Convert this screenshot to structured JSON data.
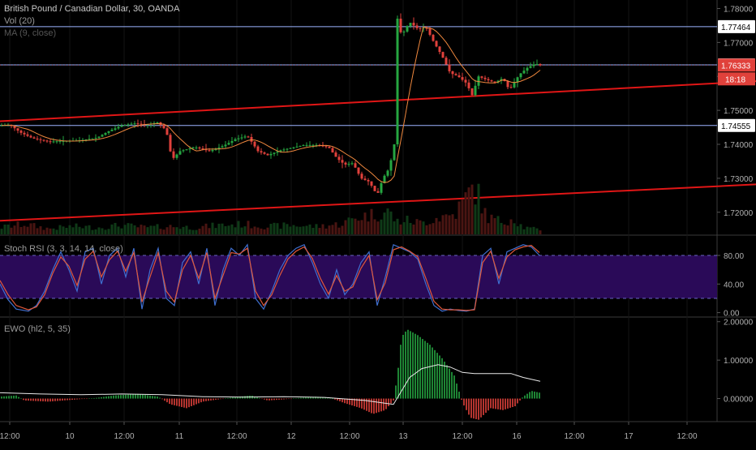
{
  "header": {
    "symbol_title": "British Pound / Canadian Dollar, 30, OANDA",
    "vol_label": "Vol (20)",
    "ma_label": "MA (9, close)",
    "stoch_label": "Stoch RSI (3, 3, 14, 14, close)",
    "ewo_label": "EWO (hl2, 5, 35)"
  },
  "colors": {
    "background": "#000000",
    "up": "#26a641",
    "down": "#e0413b",
    "trendline": "#e01616",
    "level_line": "#9db4ff",
    "ma_line": "#f0883e",
    "stoch_k": "#3f6fd0",
    "stoch_d": "#e0583b",
    "stoch_band": "#2a0a58",
    "ewo_signal": "#e8e8e8",
    "price_badge_bg": "#e0413b",
    "level_badge_bg": "#ffffff"
  },
  "chart_data": [
    {
      "type": "candlestick",
      "pane": "price",
      "ylim": [
        1.7135,
        1.7825
      ],
      "y_ticks": [
        "1.78000",
        "1.77000",
        "1.76000",
        "1.75000",
        "1.74000",
        "1.73000",
        "1.72000"
      ],
      "y_tick_values": [
        1.78,
        1.77,
        1.76,
        1.75,
        1.74,
        1.73,
        1.72
      ],
      "horizontal_levels": [
        {
          "label": "1.77464",
          "value": 1.77464
        },
        {
          "label": "1.76341",
          "value": 1.76341
        },
        {
          "label": "1.74555",
          "value": 1.74555
        }
      ],
      "last_price": {
        "label": "1.76333",
        "value": 1.76333
      },
      "countdown": "18:18",
      "trendlines": [
        {
          "from": [
            0,
            1.7468
          ],
          "to": [
            932,
            1.7586
          ]
        },
        {
          "from": [
            0,
            1.7175
          ],
          "to": [
            932,
            1.7282
          ]
        }
      ],
      "price_path": [
        [
          0,
          1.7455
        ],
        [
          12,
          1.7458
        ],
        [
          25,
          1.7435
        ],
        [
          40,
          1.7418
        ],
        [
          60,
          1.7408
        ],
        [
          80,
          1.741
        ],
        [
          100,
          1.7412
        ],
        [
          120,
          1.742
        ],
        [
          135,
          1.744
        ],
        [
          150,
          1.7455
        ],
        [
          165,
          1.7462
        ],
        [
          180,
          1.7458
        ],
        [
          195,
          1.7465
        ],
        [
          205,
          1.744
        ],
        [
          212,
          1.7355
        ],
        [
          222,
          1.738
        ],
        [
          240,
          1.7392
        ],
        [
          258,
          1.738
        ],
        [
          275,
          1.7395
        ],
        [
          290,
          1.7415
        ],
        [
          305,
          1.7425
        ],
        [
          318,
          1.738
        ],
        [
          330,
          1.7368
        ],
        [
          345,
          1.7382
        ],
        [
          360,
          1.739
        ],
        [
          375,
          1.7398
        ],
        [
          390,
          1.7398
        ],
        [
          405,
          1.7392
        ],
        [
          415,
          1.736
        ],
        [
          425,
          1.734
        ],
        [
          435,
          1.7345
        ],
        [
          445,
          1.73
        ],
        [
          455,
          1.729
        ],
        [
          465,
          1.725
        ],
        [
          472,
          1.73
        ],
        [
          480,
          1.733
        ],
        [
          486,
          1.74
        ],
        [
          489,
          1.778
        ],
        [
          495,
          1.772
        ],
        [
          505,
          1.776
        ],
        [
          515,
          1.774
        ],
        [
          525,
          1.7745
        ],
        [
          535,
          1.77
        ],
        [
          545,
          1.766
        ],
        [
          555,
          1.761
        ],
        [
          565,
          1.76
        ],
        [
          575,
          1.758
        ],
        [
          582,
          1.7545
        ],
        [
          590,
          1.76
        ],
        [
          600,
          1.759
        ],
        [
          610,
          1.7582
        ],
        [
          620,
          1.7595
        ],
        [
          628,
          1.756
        ],
        [
          640,
          1.7605
        ],
        [
          650,
          1.7625
        ],
        [
          660,
          1.7638
        ],
        [
          666,
          1.7633
        ]
      ],
      "volume_path": [
        [
          0,
          0.12
        ],
        [
          30,
          0.18
        ],
        [
          60,
          0.1
        ],
        [
          90,
          0.14
        ],
        [
          120,
          0.12
        ],
        [
          150,
          0.16
        ],
        [
          180,
          0.12
        ],
        [
          210,
          0.14
        ],
        [
          240,
          0.12
        ],
        [
          270,
          0.16
        ],
        [
          300,
          0.18
        ],
        [
          330,
          0.14
        ],
        [
          360,
          0.16
        ],
        [
          390,
          0.14
        ],
        [
          420,
          0.18
        ],
        [
          440,
          0.3
        ],
        [
          460,
          0.35
        ],
        [
          480,
          0.4
        ],
        [
          488,
          0.22
        ],
        [
          500,
          0.25
        ],
        [
          520,
          0.2
        ],
        [
          540,
          0.3
        ],
        [
          560,
          0.35
        ],
        [
          585,
          0.85
        ],
        [
          600,
          0.3
        ],
        [
          620,
          0.22
        ],
        [
          632,
          0.3
        ],
        [
          645,
          0.12
        ],
        [
          666,
          0.08
        ]
      ]
    },
    {
      "type": "line",
      "pane": "stoch_rsi",
      "ylim": [
        -5,
        105
      ],
      "y_ticks": [
        "80.00",
        "40.00",
        "0.00"
      ],
      "y_tick_values": [
        80,
        40,
        0
      ],
      "band": [
        20,
        80
      ],
      "series": [
        {
          "values": [
            [
              0,
              40
            ],
            [
              10,
              18
            ],
            [
              20,
              5
            ],
            [
              35,
              2
            ],
            [
              45,
              10
            ],
            [
              55,
              30
            ],
            [
              65,
              60
            ],
            [
              75,
              85
            ],
            [
              85,
              60
            ],
            [
              95,
              30
            ],
            [
              105,
              85
            ],
            [
              115,
              90
            ],
            [
              125,
              40
            ],
            [
              135,
              80
            ],
            [
              145,
              90
            ],
            [
              155,
              50
            ],
            [
              165,
              90
            ],
            [
              175,
              5
            ],
            [
              185,
              60
            ],
            [
              195,
              90
            ],
            [
              205,
              20
            ],
            [
              215,
              10
            ],
            [
              225,
              70
            ],
            [
              235,
              85
            ],
            [
              245,
              40
            ],
            [
              255,
              90
            ],
            [
              265,
              10
            ],
            [
              275,
              60
            ],
            [
              285,
              90
            ],
            [
              295,
              80
            ],
            [
              305,
              95
            ],
            [
              315,
              20
            ],
            [
              325,
              5
            ],
            [
              335,
              30
            ],
            [
              345,
              60
            ],
            [
              355,
              80
            ],
            [
              365,
              90
            ],
            [
              375,
              95
            ],
            [
              385,
              70
            ],
            [
              395,
              40
            ],
            [
              405,
              20
            ],
            [
              415,
              60
            ],
            [
              425,
              25
            ],
            [
              435,
              40
            ],
            [
              445,
              70
            ],
            [
              455,
              85
            ],
            [
              465,
              10
            ],
            [
              475,
              50
            ],
            [
              485,
              95
            ],
            [
              495,
              90
            ],
            [
              505,
              85
            ],
            [
              515,
              75
            ],
            [
              525,
              40
            ],
            [
              535,
              10
            ],
            [
              545,
              2
            ],
            [
              555,
              5
            ],
            [
              565,
              3
            ],
            [
              575,
              2
            ],
            [
              585,
              5
            ],
            [
              595,
              80
            ],
            [
              605,
              90
            ],
            [
              615,
              40
            ],
            [
              625,
              85
            ],
            [
              635,
              90
            ],
            [
              645,
              95
            ],
            [
              655,
              92
            ],
            [
              665,
              80
            ]
          ]
        },
        {
          "values": [
            [
              0,
              45
            ],
            [
              10,
              25
            ],
            [
              20,
              10
            ],
            [
              35,
              4
            ],
            [
              45,
              8
            ],
            [
              55,
              25
            ],
            [
              65,
              55
            ],
            [
              75,
              78
            ],
            [
              85,
              65
            ],
            [
              95,
              38
            ],
            [
              105,
              75
            ],
            [
              115,
              86
            ],
            [
              125,
              50
            ],
            [
              135,
              74
            ],
            [
              145,
              86
            ],
            [
              155,
              58
            ],
            [
              165,
              84
            ],
            [
              175,
              15
            ],
            [
              185,
              50
            ],
            [
              195,
              84
            ],
            [
              205,
              30
            ],
            [
              215,
              15
            ],
            [
              225,
              60
            ],
            [
              235,
              80
            ],
            [
              245,
              48
            ],
            [
              255,
              84
            ],
            [
              265,
              20
            ],
            [
              275,
              52
            ],
            [
              285,
              84
            ],
            [
              295,
              82
            ],
            [
              305,
              90
            ],
            [
              315,
              30
            ],
            [
              325,
              10
            ],
            [
              335,
              25
            ],
            [
              345,
              52
            ],
            [
              355,
              75
            ],
            [
              365,
              86
            ],
            [
              375,
              92
            ],
            [
              385,
              76
            ],
            [
              395,
              48
            ],
            [
              405,
              26
            ],
            [
              415,
              52
            ],
            [
              425,
              30
            ],
            [
              435,
              36
            ],
            [
              445,
              62
            ],
            [
              455,
              80
            ],
            [
              465,
              18
            ],
            [
              475,
              42
            ],
            [
              485,
              88
            ],
            [
              495,
              92
            ],
            [
              505,
              86
            ],
            [
              515,
              78
            ],
            [
              525,
              48
            ],
            [
              535,
              16
            ],
            [
              545,
              5
            ],
            [
              555,
              4
            ],
            [
              565,
              4
            ],
            [
              575,
              3
            ],
            [
              585,
              4
            ],
            [
              595,
              70
            ],
            [
              605,
              86
            ],
            [
              615,
              48
            ],
            [
              625,
              78
            ],
            [
              635,
              88
            ],
            [
              645,
              92
            ],
            [
              655,
              94
            ],
            [
              665,
              84
            ]
          ]
        }
      ]
    },
    {
      "type": "bar",
      "pane": "ewo",
      "ylim": [
        -0.6,
        2.1
      ],
      "y_ticks": [
        "2.00000",
        "1.00000",
        "0.00000"
      ],
      "y_tick_values": [
        2,
        1,
        0
      ],
      "histogram_path": [
        [
          0,
          0.05
        ],
        [
          20,
          0.08
        ],
        [
          30,
          -0.05
        ],
        [
          60,
          -0.08
        ],
        [
          90,
          -0.03
        ],
        [
          120,
          0.02
        ],
        [
          140,
          0.08
        ],
        [
          170,
          0.12
        ],
        [
          195,
          0.05
        ],
        [
          210,
          -0.15
        ],
        [
          230,
          -0.25
        ],
        [
          250,
          -0.08
        ],
        [
          270,
          -0.02
        ],
        [
          290,
          0.04
        ],
        [
          310,
          0.08
        ],
        [
          330,
          -0.05
        ],
        [
          350,
          -0.02
        ],
        [
          370,
          0.02
        ],
        [
          390,
          0.05
        ],
        [
          410,
          0.0
        ],
        [
          425,
          -0.12
        ],
        [
          445,
          -0.25
        ],
        [
          460,
          -0.4
        ],
        [
          475,
          -0.3
        ],
        [
          485,
          -0.05
        ],
        [
          490,
          0.6
        ],
        [
          495,
          1.6
        ],
        [
          502,
          1.8
        ],
        [
          515,
          1.65
        ],
        [
          530,
          1.4
        ],
        [
          545,
          1.05
        ],
        [
          560,
          0.6
        ],
        [
          570,
          -0.1
        ],
        [
          580,
          -0.5
        ],
        [
          590,
          -0.55
        ],
        [
          605,
          -0.25
        ],
        [
          620,
          -0.3
        ],
        [
          635,
          -0.2
        ],
        [
          645,
          0.05
        ],
        [
          655,
          0.2
        ],
        [
          666,
          0.15
        ]
      ],
      "signal_path": [
        [
          0,
          0.15
        ],
        [
          50,
          0.12
        ],
        [
          100,
          0.1
        ],
        [
          150,
          0.12
        ],
        [
          200,
          0.1
        ],
        [
          250,
          0.05
        ],
        [
          300,
          0.04
        ],
        [
          350,
          0.05
        ],
        [
          400,
          0.03
        ],
        [
          450,
          -0.05
        ],
        [
          485,
          -0.15
        ],
        [
          495,
          0.2
        ],
        [
          505,
          0.55
        ],
        [
          520,
          0.78
        ],
        [
          540,
          0.88
        ],
        [
          555,
          0.82
        ],
        [
          570,
          0.68
        ],
        [
          585,
          0.65
        ],
        [
          600,
          0.65
        ],
        [
          615,
          0.65
        ],
        [
          630,
          0.65
        ],
        [
          645,
          0.55
        ],
        [
          666,
          0.45
        ]
      ]
    }
  ],
  "x_axis": {
    "labels": [
      {
        "text": "12:00",
        "value": 12
      },
      {
        "text": "10",
        "value": 86
      },
      {
        "text": "12:00",
        "value": 153
      },
      {
        "text": "11",
        "value": 221
      },
      {
        "text": "12:00",
        "value": 292
      },
      {
        "text": "12",
        "value": 359
      },
      {
        "text": "12:00",
        "value": 431
      },
      {
        "text": "13",
        "value": 497
      },
      {
        "text": "12:00",
        "value": 570
      },
      {
        "text": "16",
        "value": 637
      },
      {
        "text": "12:00",
        "value": 708
      },
      {
        "text": "17",
        "value": 775
      },
      {
        "text": "12:00",
        "value": 847
      }
    ]
  }
}
